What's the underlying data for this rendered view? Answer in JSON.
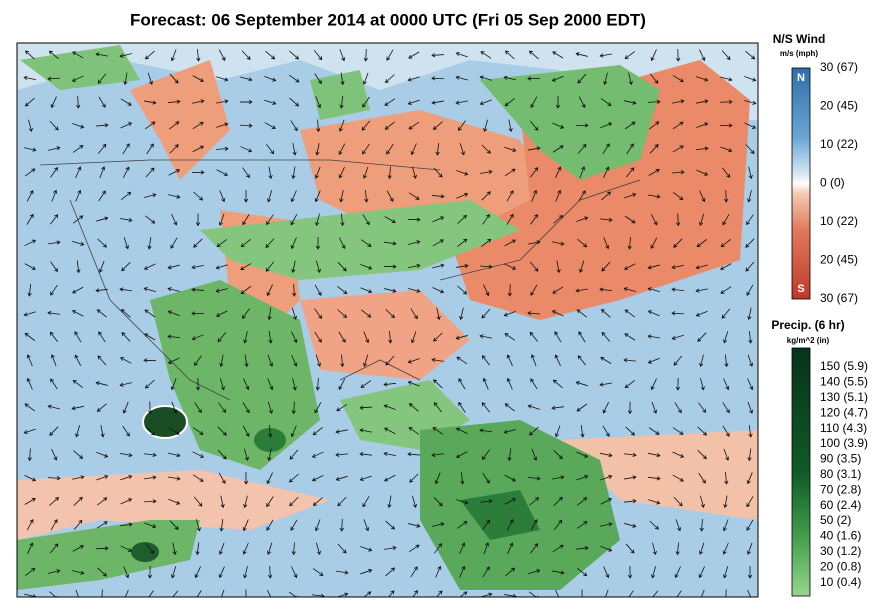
{
  "title": "Forecast: 06 September 2014 at 0000 UTC (Fri 05 Sep 2000 EDT)",
  "wind_legend": {
    "title": "N/S Wind",
    "units": "m/s (mph)",
    "north": "N",
    "south": "S",
    "labels": [
      "30 (67)",
      "20 (45)",
      "10 (22)",
      "0 (0)",
      "10 (22)",
      "20 (45)",
      "30 (67)"
    ]
  },
  "precip_legend": {
    "title": "Precip. (6 hr)",
    "units": "kg/m^2 (in)",
    "labels": [
      "150 (5.9)",
      "140 (5.5)",
      "130 (5.1)",
      "120 (4.7)",
      "110 (4.3)",
      "100 (3.9)",
      "90 (3.5)",
      "80 (3.1)",
      "70 (2.8)",
      "60 (2.4)",
      "50 (2)",
      "40 (1.6)",
      "30 (1.2)",
      "20 (0.8)",
      "10 (0.4)"
    ]
  }
}
